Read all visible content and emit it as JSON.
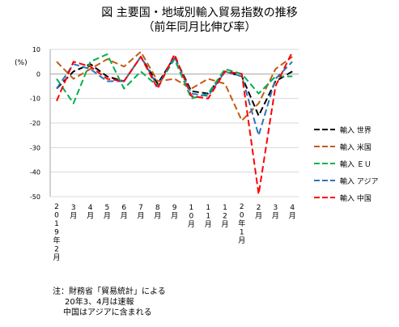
{
  "header": {
    "title": "図 主要国・地域別輸入貿易指数の推移",
    "subtitle": "（前年同月比伸び率）"
  },
  "chart_data": {
    "type": "line",
    "title": "図 主要国・地域別輸入貿易指数の推移",
    "subtitle": "（前年同月比伸び率）",
    "ylabel": "(%)",
    "xlabel": "",
    "ylim": [
      -50,
      10
    ],
    "yticks": [
      10,
      0,
      -10,
      -20,
      -30,
      -40,
      -50
    ],
    "grid": true,
    "legend_position": "right",
    "categories": [
      "2019年2月",
      "3月",
      "4月",
      "5月",
      "6月",
      "7月",
      "8月",
      "9月",
      "10月",
      "11月",
      "12月",
      "20年1月",
      "2月",
      "3月",
      "4月"
    ],
    "series": [
      {
        "name": "輸入 世界",
        "color": "#000000",
        "values": [
          -6,
          1,
          4,
          -1,
          -3,
          7,
          -4,
          7,
          -7,
          -8,
          1,
          -1,
          -17,
          -3,
          1
        ]
      },
      {
        "name": "輸入 米国",
        "color": "#c55a11",
        "values": [
          5,
          -2,
          2,
          6,
          3,
          9,
          -3,
          -2,
          -6,
          -2,
          -4,
          -19,
          -12,
          2,
          7
        ]
      },
      {
        "name": "輸入 ＥＵ",
        "color": "#00b050",
        "values": [
          -2,
          -12,
          5,
          8,
          -6,
          1,
          -5,
          6,
          -10,
          -8,
          2,
          0,
          -8,
          -1,
          -1
        ]
      },
      {
        "name": "輸入 アジア",
        "color": "#2e75b6",
        "values": [
          -6,
          4,
          2,
          -3,
          -3,
          7,
          -5,
          7,
          -8,
          -9,
          1,
          -1,
          -25,
          -2,
          5
        ]
      },
      {
        "name": "輸入 中国",
        "color": "#ff0000",
        "values": [
          -11,
          5,
          3,
          -2,
          -3,
          7,
          -6,
          8,
          -9,
          -10,
          1,
          0,
          -49,
          -5,
          9
        ]
      }
    ]
  },
  "notes": [
    "注：財務省「貿易統計」による",
    "20年3、4月は速報",
    "中国はアジアに含まれる"
  ]
}
